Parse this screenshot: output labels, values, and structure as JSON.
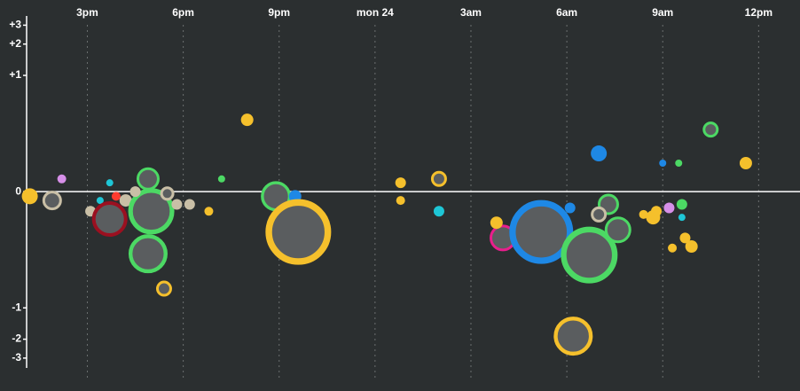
{
  "chart_data": {
    "type": "bubble",
    "yscale": "symlog",
    "grid": true,
    "xlim": [
      13.1,
      37.1
    ],
    "xticks": [
      {
        "value": 15,
        "label": "3pm"
      },
      {
        "value": 18,
        "label": "6pm"
      },
      {
        "value": 21,
        "label": "9pm"
      },
      {
        "value": 24,
        "label": "mon 24"
      },
      {
        "value": 27,
        "label": "3am"
      },
      {
        "value": 30,
        "label": "6am"
      },
      {
        "value": 33,
        "label": "9am"
      },
      {
        "value": 36,
        "label": "12pm"
      }
    ],
    "ylim": [
      -3.7,
      3.65
    ],
    "yticks": [
      {
        "value": 3,
        "label": "+3"
      },
      {
        "value": 2,
        "label": "+2"
      },
      {
        "value": 1,
        "label": "+1"
      },
      0,
      -1,
      -2,
      -3
    ],
    "points": [
      {
        "x": 13.2,
        "y": -0.01,
        "size": 9,
        "color": "#f5c02c",
        "ring": false
      },
      {
        "x": 13.9,
        "y": -0.02,
        "size": 11,
        "color": "#c9bfa6",
        "ring": true
      },
      {
        "x": 14.2,
        "y": 0.03,
        "size": 5,
        "color": "#d68fe8",
        "ring": false
      },
      {
        "x": 15.1,
        "y": -0.05,
        "size": 6,
        "color": "#c9bfa6",
        "ring": false
      },
      {
        "x": 15.7,
        "y": 0.02,
        "size": 4,
        "color": "#1ec6d6",
        "ring": false
      },
      {
        "x": 15.4,
        "y": -0.02,
        "size": 4,
        "color": "#1ec6d6",
        "ring": false
      },
      {
        "x": 15.7,
        "y": -0.076,
        "size": 20,
        "color": "#9b1020",
        "ring": true
      },
      {
        "x": 15.9,
        "y": -0.01,
        "size": 5,
        "color": "#ff3b30",
        "ring": false
      },
      {
        "x": 16.2,
        "y": -0.02,
        "size": 7,
        "color": "#c9bfa6",
        "ring": false
      },
      {
        "x": 17.0,
        "y": -0.05,
        "size": 26,
        "color": "#4cd964",
        "ring": true
      },
      {
        "x": 16.9,
        "y": 0.03,
        "size": 13,
        "color": "#4cd964",
        "ring": true
      },
      {
        "x": 16.5,
        "y": 0.0,
        "size": 6,
        "color": "#c9bfa6",
        "ring": false
      },
      {
        "x": 17.5,
        "y": -0.004,
        "size": 8,
        "color": "#c9bfa6",
        "ring": true
      },
      {
        "x": 17.8,
        "y": -0.03,
        "size": 6,
        "color": "#c9bfa6",
        "ring": false
      },
      {
        "x": 18.2,
        "y": -0.03,
        "size": 6,
        "color": "#c9bfa6",
        "ring": false
      },
      {
        "x": 16.9,
        "y": -0.26,
        "size": 22,
        "color": "#4cd964",
        "ring": true
      },
      {
        "x": 17.4,
        "y": -0.64,
        "size": 9,
        "color": "#f5c02c",
        "ring": true
      },
      {
        "x": 18.8,
        "y": -0.05,
        "size": 5,
        "color": "#f5c02c",
        "ring": false
      },
      {
        "x": 19.2,
        "y": 0.03,
        "size": 4,
        "color": "#4cd964",
        "ring": false
      },
      {
        "x": 20.0,
        "y": 0.34,
        "size": 7,
        "color": "#f5c02c",
        "ring": false
      },
      {
        "x": 20.9,
        "y": -0.01,
        "size": 17,
        "color": "#4cd964",
        "ring": true
      },
      {
        "x": 21.5,
        "y": -0.01,
        "size": 7,
        "color": "#1e88e5",
        "ring": false
      },
      {
        "x": 21.6,
        "y": -0.13,
        "size": 37,
        "color": "#f5c02c",
        "ring": true
      },
      {
        "x": 24.8,
        "y": 0.02,
        "size": 6,
        "color": "#f5c02c",
        "ring": false
      },
      {
        "x": 24.8,
        "y": -0.02,
        "size": 5,
        "color": "#f5c02c",
        "ring": false
      },
      {
        "x": 26.0,
        "y": 0.03,
        "size": 9,
        "color": "#f5c02c",
        "ring": true
      },
      {
        "x": 26.0,
        "y": -0.05,
        "size": 6,
        "color": "#1ec6d6",
        "ring": false
      },
      {
        "x": 28.0,
        "y": -0.16,
        "size": 15,
        "color": "#e91e8c",
        "ring": true
      },
      {
        "x": 27.8,
        "y": -0.09,
        "size": 7,
        "color": "#f5c02c",
        "ring": false
      },
      {
        "x": 29.2,
        "y": -0.13,
        "size": 36,
        "color": "#1e88e5",
        "ring": true
      },
      {
        "x": 30.1,
        "y": -0.04,
        "size": 6,
        "color": "#1e88e5",
        "ring": false
      },
      {
        "x": 30.7,
        "y": -0.27,
        "size": 32,
        "color": "#4cd964",
        "ring": true
      },
      {
        "x": 30.2,
        "y": -1.87,
        "size": 22,
        "color": "#f5c02c",
        "ring": true
      },
      {
        "x": 31.0,
        "y": 0.12,
        "size": 9,
        "color": "#1e88e5",
        "ring": false
      },
      {
        "x": 31.3,
        "y": -0.03,
        "size": 12,
        "color": "#4cd964",
        "ring": true
      },
      {
        "x": 31.0,
        "y": -0.06,
        "size": 9,
        "color": "#c9bfa6",
        "ring": true
      },
      {
        "x": 31.6,
        "y": -0.12,
        "size": 15,
        "color": "#4cd964",
        "ring": true
      },
      {
        "x": 32.4,
        "y": -0.06,
        "size": 5,
        "color": "#f5c02c",
        "ring": false
      },
      {
        "x": 32.7,
        "y": -0.07,
        "size": 8,
        "color": "#f5c02c",
        "ring": false
      },
      {
        "x": 32.8,
        "y": -0.05,
        "size": 6,
        "color": "#f5c02c",
        "ring": false
      },
      {
        "x": 33.2,
        "y": -0.04,
        "size": 6,
        "color": "#d68fe8",
        "ring": false
      },
      {
        "x": 33.6,
        "y": -0.03,
        "size": 6,
        "color": "#4cd964",
        "ring": false
      },
      {
        "x": 33.6,
        "y": -0.07,
        "size": 4,
        "color": "#1ec6d6",
        "ring": false
      },
      {
        "x": 33.7,
        "y": -0.16,
        "size": 6,
        "color": "#f5c02c",
        "ring": false
      },
      {
        "x": 33.9,
        "y": -0.21,
        "size": 7,
        "color": "#f5c02c",
        "ring": false
      },
      {
        "x": 33.3,
        "y": -0.22,
        "size": 5,
        "color": "#f5c02c",
        "ring": false
      },
      {
        "x": 33.0,
        "y": 0.08,
        "size": 4,
        "color": "#1e88e5",
        "ring": false
      },
      {
        "x": 33.5,
        "y": 0.08,
        "size": 4,
        "color": "#4cd964",
        "ring": false
      },
      {
        "x": 34.5,
        "y": 0.26,
        "size": 9,
        "color": "#4cd964",
        "ring": true
      },
      {
        "x": 35.6,
        "y": 0.08,
        "size": 7,
        "color": "#f5c02c",
        "ring": false
      }
    ]
  }
}
